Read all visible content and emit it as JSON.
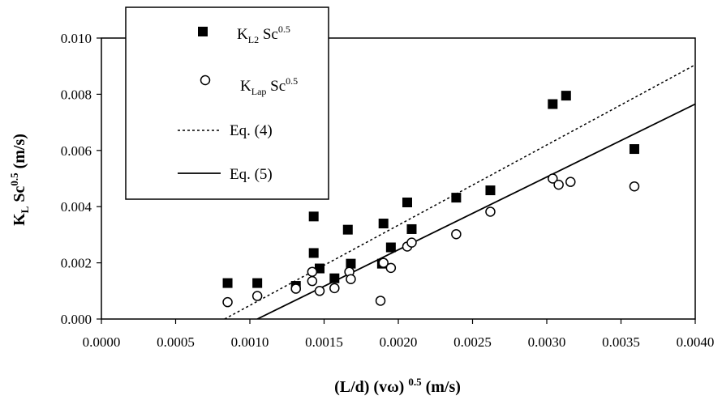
{
  "chart_data": {
    "type": "scatter",
    "title": "",
    "xlabel": "(L/d) (vω) 0.5 (m/s)",
    "xlabel_parts": {
      "base": "(L/d) (vω)",
      "sup": "0.5",
      "unit": "(m/s)"
    },
    "ylabel": "KL Sc0.5 (m/s)",
    "ylabel_parts": {
      "k": "K",
      "ksub": "L",
      "sc": "Sc",
      "sup": "0.5",
      "unit": "(m/s)"
    },
    "xlim": [
      0,
      0.004
    ],
    "ylim": [
      0,
      0.01
    ],
    "xticks": [
      "0.0000",
      "0.0005",
      "0.0010",
      "0.0015",
      "0.0020",
      "0.0025",
      "0.0030",
      "0.0035",
      "0.0040"
    ],
    "xtick_values": [
      0,
      0.0005,
      0.001,
      0.0015,
      0.002,
      0.0025,
      0.003,
      0.0035,
      0.004
    ],
    "yticks": [
      "0.000",
      "0.002",
      "0.004",
      "0.006",
      "0.008",
      "0.010"
    ],
    "ytick_values": [
      0,
      0.002,
      0.004,
      0.006,
      0.008,
      0.01
    ],
    "grid": false,
    "legend_position": "top-left",
    "series": [
      {
        "name": "KL2 Sc0.5",
        "legend": {
          "k": "K",
          "sub": "L2",
          "sc": " Sc",
          "sup": "0.5"
        },
        "marker": "square-filled",
        "points": [
          [
            0.00085,
            0.00128
          ],
          [
            0.00105,
            0.00128
          ],
          [
            0.00131,
            0.00118
          ],
          [
            0.00143,
            0.00365
          ],
          [
            0.00143,
            0.00235
          ],
          [
            0.00147,
            0.0018
          ],
          [
            0.00157,
            0.00145
          ],
          [
            0.00166,
            0.00318
          ],
          [
            0.00168,
            0.00197
          ],
          [
            0.00189,
            0.00197
          ],
          [
            0.0019,
            0.0034
          ],
          [
            0.00195,
            0.00255
          ],
          [
            0.00206,
            0.00415
          ],
          [
            0.00209,
            0.0032
          ],
          [
            0.00239,
            0.00432
          ],
          [
            0.00262,
            0.00458
          ],
          [
            0.00304,
            0.00765
          ],
          [
            0.00313,
            0.00795
          ],
          [
            0.00359,
            0.00605
          ]
        ]
      },
      {
        "name": "KLap Sc0.5",
        "legend": {
          "k": "K",
          "sub": "Lap",
          "sc": " Sc",
          "sup": "0.5"
        },
        "marker": "circle-open",
        "points": [
          [
            0.00085,
            0.0006
          ],
          [
            0.00105,
            0.00082
          ],
          [
            0.00131,
            0.00108
          ],
          [
            0.00142,
            0.00168
          ],
          [
            0.00142,
            0.00135
          ],
          [
            0.00147,
            0.001
          ],
          [
            0.00157,
            0.0011
          ],
          [
            0.00167,
            0.00168
          ],
          [
            0.00168,
            0.00142
          ],
          [
            0.00188,
            0.00065
          ],
          [
            0.0019,
            0.002
          ],
          [
            0.00195,
            0.00182
          ],
          [
            0.00206,
            0.00258
          ],
          [
            0.00209,
            0.00272
          ],
          [
            0.00239,
            0.00302
          ],
          [
            0.00262,
            0.00382
          ],
          [
            0.00304,
            0.005
          ],
          [
            0.00308,
            0.00478
          ],
          [
            0.00316,
            0.00488
          ],
          [
            0.00359,
            0.00472
          ]
        ]
      },
      {
        "name": "Eq. (4)",
        "style": "dashed-line",
        "points": [
          [
            0.00083,
            0.0
          ],
          [
            0.004,
            0.00905
          ]
        ]
      },
      {
        "name": "Eq. (5)",
        "style": "solid-line",
        "points": [
          [
            0.00105,
            0.0
          ],
          [
            0.004,
            0.00765
          ]
        ]
      }
    ]
  }
}
